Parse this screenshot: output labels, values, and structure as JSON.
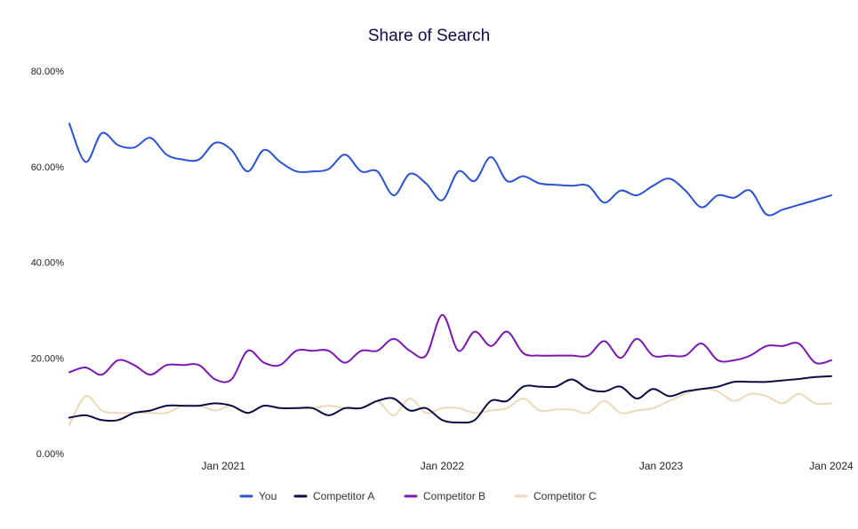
{
  "chart_data": {
    "type": "line",
    "title": "Share of Search",
    "xlabel": "",
    "ylabel": "",
    "ylim": [
      0,
      80
    ],
    "y_ticks": [
      "0.00%",
      "20.00%",
      "40.00%",
      "60.00%",
      "80.00%"
    ],
    "y_tick_values": [
      0,
      20,
      40,
      60,
      80
    ],
    "x_range": [
      0,
      47
    ],
    "x_ticks": [
      {
        "label": "Jan 2021",
        "x": 9.5
      },
      {
        "label": "Jan 2022",
        "x": 23
      },
      {
        "label": "Jan 2023",
        "x": 36.5
      },
      {
        "label": "Jan 2024",
        "x": 47
      }
    ],
    "legend_position": "bottom",
    "series": [
      {
        "name": "You",
        "color": "#2a52d4",
        "values": [
          69,
          61,
          67,
          64.5,
          64,
          66,
          62.5,
          61.5,
          61.5,
          65,
          63.5,
          59,
          63.5,
          61,
          59,
          59,
          59.5,
          62.5,
          59,
          59,
          54,
          58.5,
          56.5,
          53,
          59,
          57,
          62,
          57,
          58,
          56.5,
          56.2,
          56,
          56,
          52.5,
          55,
          54,
          56,
          57.5,
          55,
          51.5,
          54,
          53.5,
          55,
          50,
          51,
          52,
          53,
          54
        ]
      },
      {
        "name": "Competitor A",
        "color": "#0c0c45",
        "values": [
          7.5,
          8,
          7,
          7,
          8.5,
          9,
          10,
          10,
          10,
          10.5,
          10,
          8.5,
          10,
          9.5,
          9.5,
          9.5,
          8,
          9.5,
          9.5,
          11,
          11.5,
          9,
          9.5,
          7,
          6.5,
          7,
          11,
          11,
          14,
          14,
          14,
          15.5,
          13.5,
          13,
          14,
          11.5,
          13.5,
          12,
          13,
          13.5,
          14,
          15,
          15,
          15,
          15.3,
          15.6,
          16,
          16.2
        ]
      },
      {
        "name": "Competitor B",
        "color": "#7b17b5",
        "values": [
          17,
          18,
          16.5,
          19.5,
          18.5,
          16.5,
          18.5,
          18.5,
          18.5,
          15.5,
          15.5,
          21.5,
          19,
          18.5,
          21.5,
          21.5,
          21.5,
          19,
          21.5,
          21.5,
          24,
          21.5,
          20.5,
          29,
          21.5,
          25.5,
          22.5,
          25.5,
          21,
          20.5,
          20.5,
          20.5,
          20.5,
          23.5,
          20,
          24,
          20.5,
          20.5,
          20.5,
          23,
          19.5,
          19.5,
          20.5,
          22.5,
          22.5,
          23,
          19,
          19.5
        ]
      },
      {
        "name": "Competitor C",
        "color": "#edd9b9",
        "values": [
          6,
          12,
          9,
          8.5,
          8.5,
          8.5,
          8.5,
          10,
          10,
          9,
          10,
          8.5,
          10,
          9.5,
          9.5,
          9.5,
          10,
          9.5,
          9.5,
          11,
          8,
          11.5,
          8.5,
          9.5,
          9.5,
          8.5,
          9,
          9.5,
          11.5,
          9,
          9.2,
          9.2,
          8.5,
          11,
          8.5,
          9,
          9.5,
          11,
          12.5,
          13.5,
          13,
          11,
          12.5,
          12,
          10.5,
          12.5,
          10.5,
          10.5
        ]
      }
    ]
  }
}
